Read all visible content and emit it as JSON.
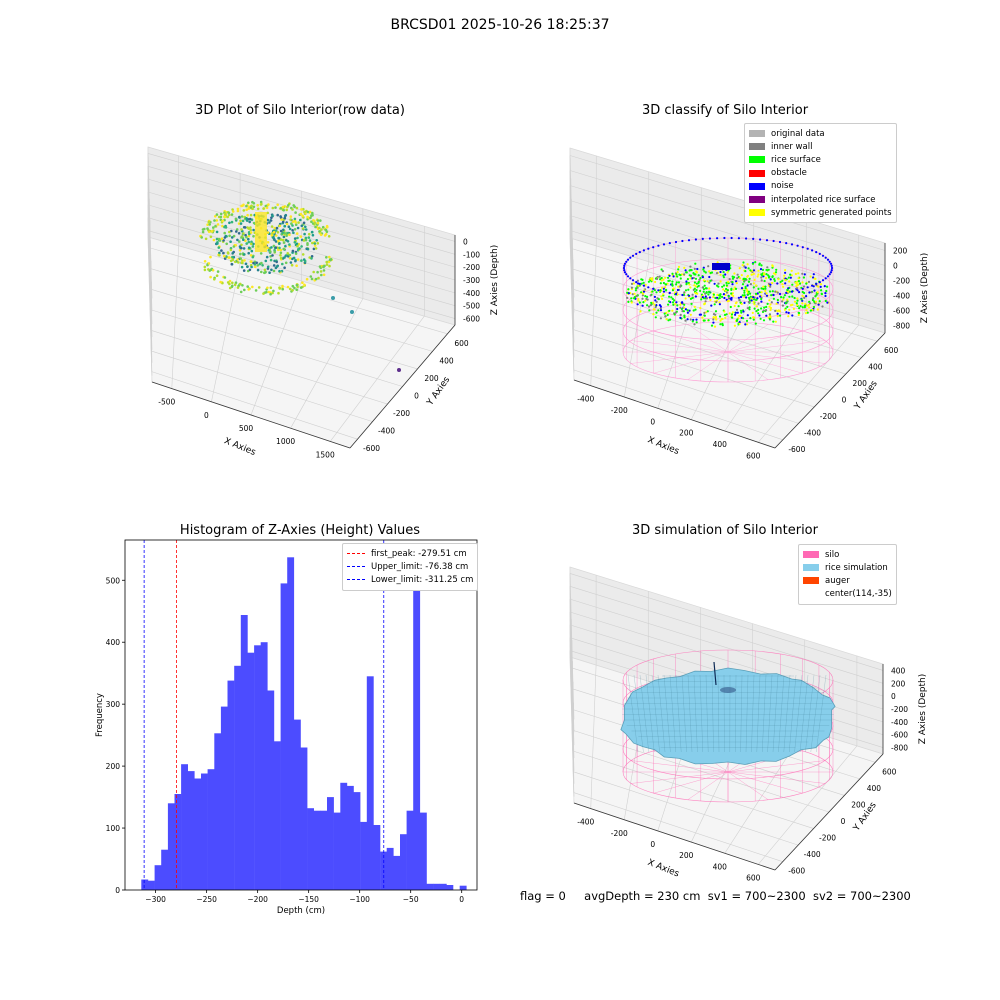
{
  "suptitle": "BRCSD01 2025-10-26 18:25:37",
  "status": {
    "flag": "flag = 0",
    "avg": "avgDepth = 230 cm",
    "sv1": "sv1 = 700~2300",
    "sv2": "sv2 = 700~2300"
  },
  "chart_data": [
    {
      "type": "scatter",
      "title": "3D Plot of Silo Interior(row data)",
      "xlabel": "X Axies",
      "ylabel": "Y Axies",
      "zlabel": "Z Axies (Depth)",
      "xticks": [
        "-500",
        "0",
        "500",
        "1000",
        "1500"
      ],
      "yticks": [
        "-600",
        "-400",
        "-200",
        "0",
        "200",
        "400",
        "600"
      ],
      "zticks": [
        "0",
        "-100",
        "-200",
        "-300",
        "-400",
        "-500",
        "-600"
      ],
      "colormap": "viridis",
      "series": []
    },
    {
      "type": "scatter",
      "title": "3D classify of Silo Interior",
      "xlabel": "X Axies",
      "ylabel": "Y Axies",
      "zlabel": "Z Axies (Depth)",
      "xticks": [
        "-400",
        "-200",
        "0",
        "200",
        "400",
        "600"
      ],
      "yticks": [
        "-600",
        "-400",
        "-200",
        "0",
        "200",
        "400",
        "600"
      ],
      "zticks": [
        "200",
        "0",
        "-200",
        "-400",
        "-600",
        "-800"
      ],
      "legend": [
        {
          "label": "original data",
          "color": "#b3b3b3"
        },
        {
          "label": "inner wall",
          "color": "#808080"
        },
        {
          "label": "rice surface",
          "color": "#00ff00"
        },
        {
          "label": "obstacle",
          "color": "#ff0000"
        },
        {
          "label": "noise",
          "color": "#0000ff"
        },
        {
          "label": "interpolated rice surface",
          "color": "#800080"
        },
        {
          "label": "symmetric generated points",
          "color": "#ffff00"
        }
      ],
      "legend_position": "top-right"
    },
    {
      "type": "bar",
      "title": "Histogram of Z-Axies (Height) Values",
      "xlabel": "Depth (cm)",
      "ylabel": "Frequency",
      "xlim": [
        -330,
        15
      ],
      "ylim": [
        0,
        565
      ],
      "xticks": [
        -300,
        -250,
        -200,
        -150,
        -100,
        -50,
        0
      ],
      "yticks": [
        0,
        100,
        200,
        300,
        400,
        500
      ],
      "bar_color": "#4c4cff",
      "bin_width": 6.5,
      "bin_start": -314,
      "values": [
        17,
        15,
        40,
        65,
        140,
        155,
        203,
        192,
        180,
        188,
        195,
        253,
        296,
        338,
        362,
        444,
        383,
        395,
        400,
        322,
        240,
        495,
        537,
        275,
        230,
        132,
        128,
        128,
        150,
        125,
        173,
        168,
        158,
        110,
        345,
        105,
        62,
        68,
        55,
        90,
        128,
        516,
        125,
        10,
        10,
        10,
        8,
        0,
        7
      ],
      "lines": [
        {
          "label": "first_peak: -279.51 cm",
          "value": -279.51,
          "color": "#ff0000"
        },
        {
          "label": "Upper_limit: -76.38 cm",
          "value": -76.38,
          "color": "#0000ff"
        },
        {
          "label": "Lower_limit: -311.25 cm",
          "value": -311.25,
          "color": "#0000ff"
        }
      ],
      "legend_position": "top-right"
    },
    {
      "type": "area",
      "title": "3D simulation of Silo Interior",
      "xlabel": "X Axies",
      "ylabel": "Y Axies",
      "zlabel": "Z Axies (Depth)",
      "xticks": [
        "-400",
        "-200",
        "0",
        "200",
        "400",
        "600"
      ],
      "yticks": [
        "-600",
        "-400",
        "-200",
        "0",
        "200",
        "400",
        "600"
      ],
      "zticks": [
        "400",
        "200",
        "0",
        "-200",
        "-400",
        "-600",
        "-800"
      ],
      "legend": [
        {
          "label": "silo",
          "color": "#ff69b4"
        },
        {
          "label": "rice simulation",
          "color": "#87ceeb"
        },
        {
          "label": "auger",
          "color": "#ff4500"
        },
        {
          "label": "center(114,-35)",
          "color": ""
        }
      ],
      "legend_position": "top-right"
    }
  ]
}
